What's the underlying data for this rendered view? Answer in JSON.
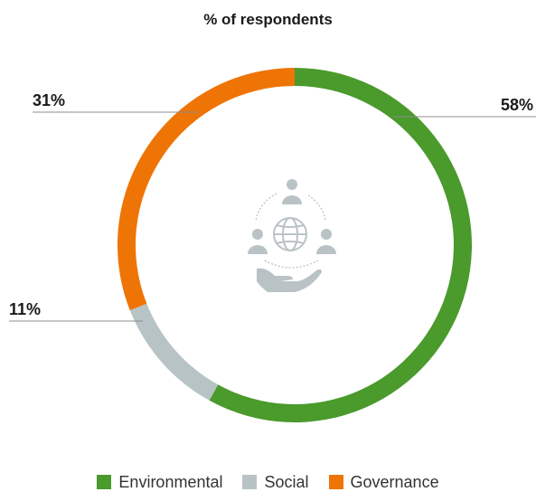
{
  "chart_data": {
    "type": "pie",
    "title": "% of respondents",
    "categories": [
      "Environmental",
      "Social",
      "Governance"
    ],
    "values": [
      58,
      11,
      31
    ],
    "value_labels": [
      "58%",
      "11%",
      "31%"
    ],
    "colors": [
      "#4a9a2c",
      "#b8c3c6",
      "#ef7406"
    ],
    "legend_position": "bottom-center"
  }
}
